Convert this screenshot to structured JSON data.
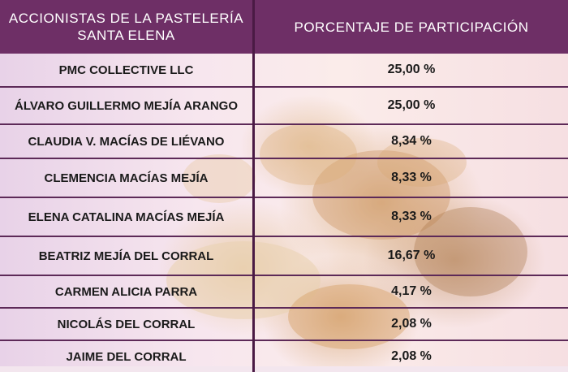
{
  "table": {
    "headers": {
      "shareholders": "ACCIONISTAS DE LA PASTELERÍA SANTA ELENA",
      "percentage": "PORCENTAJE DE PARTICIPACIÓN"
    },
    "rows": [
      {
        "name": "PMC COLLECTIVE LLC",
        "percentage": "25,00 %"
      },
      {
        "name": "ÁLVARO GUILLERMO MEJÍA ARANGO",
        "percentage": "25,00 %"
      },
      {
        "name": "CLAUDIA V. MACÍAS DE LIÉVANO",
        "percentage": "8,34 %"
      },
      {
        "name": "CLEMENCIA MACÍAS MEJÍA",
        "percentage": "8,33 %"
      },
      {
        "name": "ELENA CATALINA MACÍAS MEJÍA",
        "percentage": "8,33 %"
      },
      {
        "name": "BEATRIZ MEJÍA DEL CORRAL",
        "percentage": "16,67 %"
      },
      {
        "name": "CARMEN ALICIA PARRA",
        "percentage": "4,17 %"
      },
      {
        "name": "NICOLÁS DEL CORRAL",
        "percentage": "2,08 %"
      },
      {
        "name": "JAIME DEL CORRAL",
        "percentage": "2,08 %"
      }
    ]
  },
  "colors": {
    "header_bg": "#6e2f66",
    "header_text": "#ffffff",
    "divider": "#5d2a58"
  },
  "background": {
    "icons": [
      "bread-loaves-image"
    ]
  }
}
